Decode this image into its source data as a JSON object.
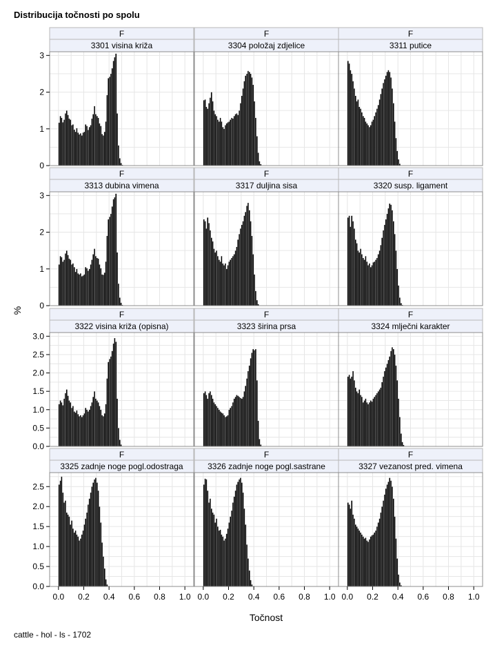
{
  "title": "Distribucija točnosti po spolu",
  "footnote": "cattle - hol - ls - 1702",
  "chart_data": {
    "type": "bar",
    "layout": "panel-grid",
    "rows": 4,
    "cols": 3,
    "xlabel": "Točnost",
    "ylabel": "%",
    "xlim": [
      -0.07,
      1.07
    ],
    "xticks": [
      "0.0",
      "0.2",
      "0.4",
      "0.6",
      "0.8",
      "1.0"
    ],
    "bar_width": 0.01,
    "bar_color": "#000000",
    "grid": true,
    "panel_header_fill": "#eef1fa",
    "panel_rows": [
      {
        "ylim": [
          0,
          3.1
        ],
        "yticks": [
          "0",
          "1",
          "2",
          "3"
        ]
      },
      {
        "ylim": [
          0,
          3.1
        ],
        "yticks": [
          "0",
          "1",
          "2",
          "3"
        ]
      },
      {
        "ylim": [
          0,
          3.1
        ],
        "yticks": [
          "0.0",
          "0.5",
          "1.0",
          "1.5",
          "2.0",
          "2.5",
          "3.0"
        ]
      },
      {
        "ylim": [
          0,
          2.85
        ],
        "yticks": [
          "0.0",
          "0.5",
          "1.0",
          "1.5",
          "2.0",
          "2.5"
        ]
      }
    ],
    "panels": [
      {
        "sex": "F",
        "trait": "3301 visina križa",
        "x_start": 0.0,
        "values": [
          1.17,
          1.35,
          1.3,
          1.18,
          1.25,
          1.42,
          1.5,
          1.38,
          1.28,
          1.25,
          1.1,
          1.12,
          0.98,
          0.92,
          1.02,
          0.9,
          0.85,
          0.88,
          0.82,
          0.9,
          0.92,
          1.12,
          1.08,
          0.97,
          1.05,
          1.1,
          1.28,
          1.4,
          1.62,
          1.4,
          1.35,
          1.3,
          1.15,
          1.08,
          0.86,
          0.82,
          0.92,
          1.2,
          1.92,
          2.38,
          2.42,
          2.5,
          2.65,
          2.85,
          2.95,
          3.05,
          1.42,
          0.55,
          0.2,
          0.07,
          0.02
        ]
      },
      {
        "sex": "F",
        "trait": "3304 položaj zdjelice",
        "x_start": 0.0,
        "values": [
          1.78,
          1.8,
          1.6,
          1.55,
          1.7,
          1.85,
          2.0,
          1.75,
          1.5,
          1.4,
          1.35,
          1.25,
          1.2,
          1.3,
          1.2,
          1.05,
          1.0,
          1.1,
          1.15,
          1.18,
          1.2,
          1.25,
          1.3,
          1.28,
          1.35,
          1.4,
          1.42,
          1.38,
          1.5,
          1.7,
          1.9,
          2.1,
          2.3,
          2.45,
          2.5,
          2.58,
          2.55,
          2.5,
          2.4,
          2.2,
          1.75,
          1.3,
          0.8,
          0.35,
          0.12,
          0.04
        ]
      },
      {
        "sex": "F",
        "trait": "3311 putice",
        "x_start": 0.0,
        "values": [
          2.85,
          2.78,
          2.6,
          2.5,
          2.3,
          2.1,
          1.9,
          1.75,
          1.8,
          1.6,
          1.55,
          1.45,
          1.35,
          1.3,
          1.2,
          1.15,
          1.1,
          1.05,
          1.1,
          1.2,
          1.25,
          1.35,
          1.45,
          1.55,
          1.65,
          1.8,
          1.95,
          2.1,
          2.25,
          2.35,
          2.45,
          2.55,
          2.6,
          2.55,
          2.4,
          2.1,
          1.7,
          1.2,
          0.75,
          0.4,
          0.17,
          0.05
        ]
      },
      {
        "sex": "F",
        "trait": "3313 dubina vimena",
        "x_start": 0.0,
        "values": [
          1.12,
          1.35,
          1.32,
          1.2,
          1.25,
          1.42,
          1.5,
          1.38,
          1.28,
          1.25,
          1.12,
          1.15,
          1.05,
          0.92,
          1.0,
          0.88,
          0.85,
          0.88,
          0.8,
          0.82,
          0.85,
          1.05,
          1.02,
          0.95,
          1.0,
          1.12,
          1.25,
          1.4,
          1.55,
          1.35,
          1.3,
          1.28,
          1.12,
          1.02,
          0.85,
          0.84,
          0.9,
          1.2,
          1.9,
          2.35,
          2.42,
          2.5,
          2.7,
          2.9,
          2.95,
          3.05,
          1.45,
          0.6,
          0.22,
          0.08,
          0.02
        ]
      },
      {
        "sex": "F",
        "trait": "3317 duljina sisa",
        "x_start": 0.0,
        "values": [
          2.35,
          2.3,
          2.1,
          2.4,
          2.25,
          2.05,
          1.85,
          1.75,
          1.55,
          1.45,
          1.5,
          1.35,
          1.25,
          1.2,
          1.35,
          1.15,
          1.1,
          1.15,
          1.0,
          1.1,
          1.2,
          1.25,
          1.3,
          1.35,
          1.4,
          1.5,
          1.6,
          1.8,
          1.95,
          2.1,
          2.2,
          2.3,
          2.45,
          2.55,
          2.72,
          2.8,
          2.6,
          2.3,
          1.9,
          1.4,
          0.85,
          0.4,
          0.15,
          0.04
        ]
      },
      {
        "sex": "F",
        "trait": "3320 susp. ligament",
        "x_start": 0.0,
        "values": [
          2.4,
          2.45,
          2.15,
          2.45,
          2.3,
          2.1,
          1.8,
          1.7,
          1.5,
          1.45,
          1.55,
          1.4,
          1.3,
          1.25,
          1.35,
          1.2,
          1.1,
          1.15,
          1.05,
          1.1,
          1.18,
          1.2,
          1.25,
          1.3,
          1.4,
          1.5,
          1.65,
          1.85,
          2.05,
          2.2,
          2.35,
          2.5,
          2.65,
          2.78,
          2.75,
          2.6,
          2.3,
          1.95,
          1.5,
          1.0,
          0.55,
          0.22,
          0.07,
          0.02
        ]
      },
      {
        "sex": "F",
        "trait": "3322 visina križa (opisna)",
        "x_start": 0.0,
        "values": [
          1.15,
          1.25,
          1.2,
          1.12,
          1.3,
          1.45,
          1.55,
          1.38,
          1.25,
          1.2,
          1.05,
          1.1,
          0.95,
          0.92,
          0.98,
          0.88,
          0.82,
          0.85,
          0.8,
          0.85,
          0.9,
          1.05,
          1.0,
          0.95,
          1.0,
          1.1,
          1.2,
          1.35,
          1.5,
          1.3,
          1.25,
          1.2,
          1.1,
          1.0,
          0.85,
          0.82,
          0.9,
          1.15,
          1.85,
          2.3,
          2.38,
          2.45,
          2.6,
          2.8,
          2.95,
          2.85,
          1.3,
          0.5,
          0.18,
          0.05,
          0.01
        ]
      },
      {
        "sex": "F",
        "trait": "3323 širina prsa",
        "x_start": 0.0,
        "values": [
          1.45,
          1.5,
          1.4,
          1.3,
          1.45,
          1.5,
          1.4,
          1.3,
          1.2,
          1.15,
          1.1,
          1.05,
          1.0,
          0.95,
          0.92,
          0.9,
          0.85,
          0.8,
          0.82,
          0.85,
          1.0,
          1.05,
          1.1,
          1.2,
          1.3,
          1.35,
          1.4,
          1.38,
          1.35,
          1.32,
          1.3,
          1.35,
          1.5,
          1.65,
          1.85,
          2.05,
          2.2,
          2.4,
          2.55,
          2.65,
          2.62,
          2.65,
          1.8,
          0.7,
          0.2,
          0.05,
          0.01
        ]
      },
      {
        "sex": "F",
        "trait": "3324 mlječni karakter",
        "x_start": 0.0,
        "values": [
          1.9,
          1.95,
          1.85,
          1.9,
          2.05,
          1.8,
          1.6,
          1.5,
          1.45,
          1.55,
          1.4,
          1.35,
          1.2,
          1.25,
          1.3,
          1.2,
          1.15,
          1.2,
          1.25,
          1.22,
          1.3,
          1.35,
          1.4,
          1.45,
          1.5,
          1.55,
          1.6,
          1.75,
          1.9,
          2.05,
          2.15,
          2.25,
          2.35,
          2.45,
          2.6,
          2.7,
          2.65,
          2.5,
          2.2,
          1.8,
          1.3,
          0.8,
          0.35,
          0.12,
          0.04
        ]
      },
      {
        "sex": "F",
        "trait": "3325 zadnje noge pogl.odostraga",
        "x_start": 0.0,
        "values": [
          2.55,
          2.65,
          2.75,
          2.35,
          2.1,
          2.15,
          1.85,
          1.8,
          1.75,
          1.55,
          1.65,
          1.45,
          1.35,
          1.4,
          1.3,
          1.25,
          1.15,
          1.2,
          1.3,
          1.4,
          1.55,
          1.7,
          1.85,
          2.05,
          2.2,
          2.35,
          2.5,
          2.6,
          2.68,
          2.72,
          2.6,
          2.4,
          2.0,
          1.6,
          1.1,
          0.75,
          0.45,
          0.18,
          0.05,
          0.01
        ]
      },
      {
        "sex": "F",
        "trait": "3326 zadnje noge pogl.sastrane",
        "x_start": 0.0,
        "values": [
          2.55,
          2.7,
          2.68,
          2.4,
          2.1,
          2.2,
          1.95,
          1.85,
          1.8,
          1.6,
          1.7,
          1.5,
          1.4,
          1.42,
          1.3,
          1.25,
          1.15,
          1.2,
          1.32,
          1.45,
          1.6,
          1.75,
          1.9,
          2.1,
          2.25,
          2.4,
          2.55,
          2.62,
          2.68,
          2.72,
          2.6,
          2.35,
          1.95,
          1.55,
          1.05,
          0.7,
          0.4,
          0.16,
          0.05,
          0.01
        ]
      },
      {
        "sex": "F",
        "trait": "3327 vezanost pred. vimena",
        "x_start": 0.0,
        "values": [
          2.1,
          2.05,
          1.95,
          2.15,
          1.8,
          1.7,
          1.55,
          1.5,
          1.45,
          1.4,
          1.35,
          1.3,
          1.25,
          1.2,
          1.22,
          1.15,
          1.12,
          1.18,
          1.25,
          1.28,
          1.3,
          1.35,
          1.4,
          1.5,
          1.6,
          1.7,
          1.85,
          2.0,
          2.15,
          2.3,
          2.45,
          2.55,
          2.62,
          2.72,
          2.65,
          2.5,
          2.2,
          1.75,
          1.2,
          0.7,
          0.3,
          0.1,
          0.03
        ]
      }
    ]
  }
}
